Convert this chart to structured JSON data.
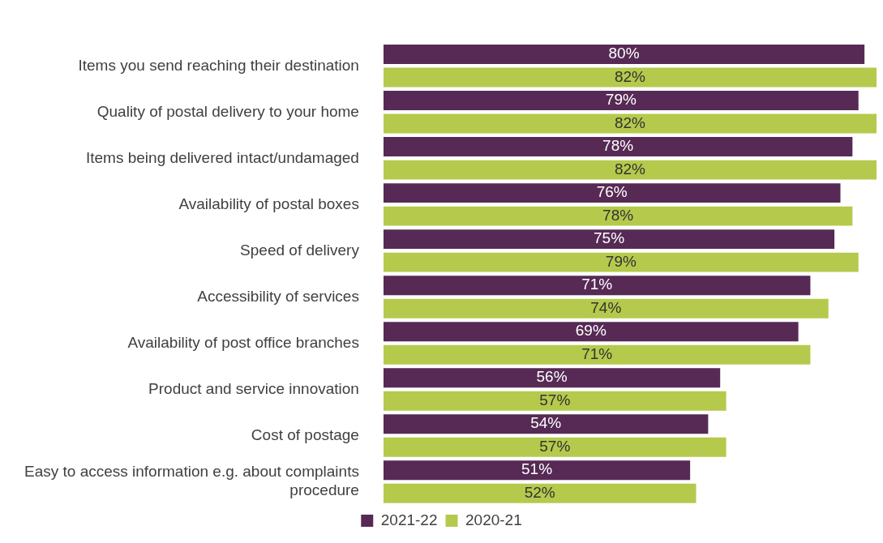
{
  "chart_data": {
    "type": "bar",
    "orientation": "horizontal",
    "categories": [
      "Items you send reaching their destination",
      "Quality of postal delivery to your home",
      "Items being delivered intact/undamaged",
      "Availability of postal boxes",
      "Speed of delivery",
      "Accessibility of services",
      "Availability of post office branches",
      "Product and service innovation",
      "Cost of postage",
      "Easy to access information e.g. about complaints procedure"
    ],
    "series": [
      {
        "name": "2021-22",
        "color": "#562a55",
        "values": [
          80,
          79,
          78,
          76,
          75,
          71,
          69,
          56,
          54,
          51
        ],
        "value_labels": [
          "80%",
          "79%",
          "78%",
          "76%",
          "75%",
          "71%",
          "69%",
          "56%",
          "54%",
          "51%"
        ]
      },
      {
        "name": "2020-21",
        "color": "#b5c94c",
        "values": [
          82,
          82,
          82,
          78,
          79,
          74,
          71,
          57,
          57,
          52
        ],
        "value_labels": [
          "82%",
          "82%",
          "82%",
          "78%",
          "79%",
          "74%",
          "71%",
          "57%",
          "57%",
          "52%"
        ]
      }
    ],
    "xlim": [
      0,
      82
    ],
    "tick_labels": "y",
    "legend": "bottom"
  }
}
